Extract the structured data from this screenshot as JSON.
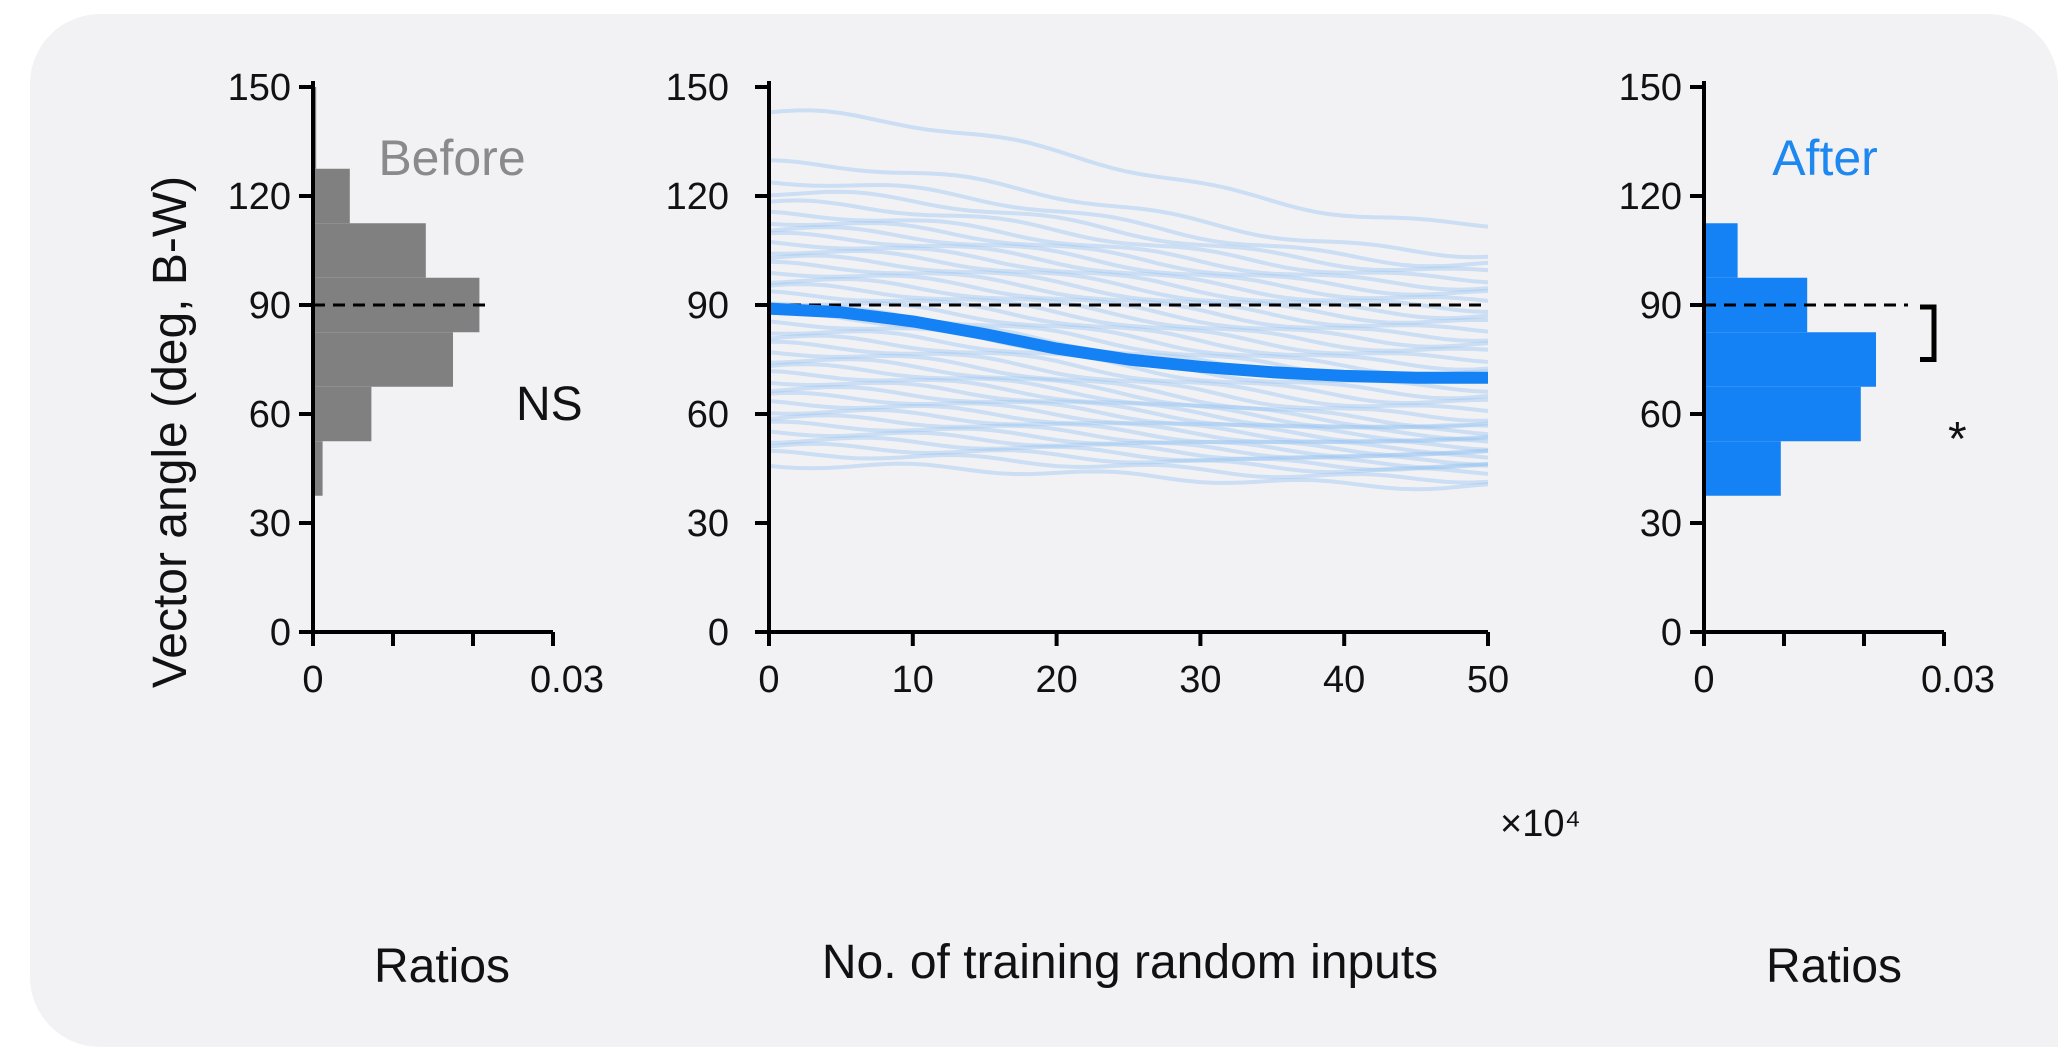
{
  "chart_data": [
    {
      "type": "histogram",
      "orientation": "horizontal",
      "title": "Before",
      "ylabel": "Vector angle (deg, B-W)",
      "xlabel": "Ratios",
      "xlim": [
        0,
        0.03
      ],
      "ylim": [
        0,
        150
      ],
      "xtick_labels": [
        "0",
        "0.03"
      ],
      "ytick_labels": [
        "0",
        "30",
        "60",
        "90",
        "120",
        "150"
      ],
      "bins": [
        {
          "from": 37.5,
          "to": 52.5,
          "value": 0.0012
        },
        {
          "from": 52.5,
          "to": 67.5,
          "value": 0.0073
        },
        {
          "from": 67.5,
          "to": 82.5,
          "value": 0.0175
        },
        {
          "from": 82.5,
          "to": 97.5,
          "value": 0.0208
        },
        {
          "from": 97.5,
          "to": 112.5,
          "value": 0.0141
        },
        {
          "from": 112.5,
          "to": 127.5,
          "value": 0.0046
        },
        {
          "from": 127.5,
          "to": 150,
          "value": 0.0004
        }
      ],
      "reference_line": 90,
      "annotation": "NS"
    },
    {
      "type": "line",
      "xlabel": "No. of training random inputs",
      "x_multiplier_label": "×10⁴",
      "xlim": [
        0,
        50
      ],
      "ylim": [
        0,
        150
      ],
      "xtick_labels": [
        "0",
        "10",
        "20",
        "30",
        "40",
        "50"
      ],
      "ytick_labels": [
        "0",
        "30",
        "60",
        "90",
        "120",
        "150"
      ],
      "reference_line": 90,
      "mean_series": {
        "x": [
          0,
          5,
          10,
          15,
          20,
          25,
          30,
          35,
          40,
          45,
          50
        ],
        "y": [
          89,
          88,
          85.5,
          82,
          78,
          75,
          73,
          71.5,
          70.5,
          70,
          70
        ]
      },
      "individual_series": {
        "start": [
          143,
          129,
          124,
          121,
          118,
          115,
          113,
          111,
          109,
          107,
          105,
          103,
          101,
          99,
          97,
          95,
          93,
          91,
          89,
          87,
          85,
          83,
          81,
          79,
          77,
          75,
          73,
          71,
          69,
          67,
          65,
          63,
          61,
          59,
          57,
          55,
          53,
          51,
          49,
          46
        ],
        "end": [
          112,
          104,
          101,
          99,
          97,
          95,
          93,
          91,
          89,
          87,
          85,
          83,
          81,
          79,
          77,
          75,
          73,
          71,
          69,
          67,
          65,
          63,
          61,
          59,
          57,
          56,
          55,
          54,
          53,
          52,
          51,
          50,
          49,
          48,
          47,
          46,
          45,
          44,
          42,
          40
        ]
      }
    },
    {
      "type": "histogram",
      "orientation": "horizontal",
      "title": "After",
      "xlabel": "Ratios",
      "xlim": [
        0,
        0.03
      ],
      "ylim": [
        0,
        150
      ],
      "xtick_labels": [
        "0",
        "0.03"
      ],
      "ytick_labels": [
        "0",
        "30",
        "60",
        "90",
        "120",
        "150"
      ],
      "bins": [
        {
          "from": 37.5,
          "to": 52.5,
          "value": 0.0096
        },
        {
          "from": 52.5,
          "to": 67.5,
          "value": 0.0196
        },
        {
          "from": 67.5,
          "to": 82.5,
          "value": 0.0215
        },
        {
          "from": 82.5,
          "to": 97.5,
          "value": 0.0129
        },
        {
          "from": 97.5,
          "to": 112.5,
          "value": 0.0042
        }
      ],
      "reference_line": 90,
      "annotation": "*"
    }
  ]
}
